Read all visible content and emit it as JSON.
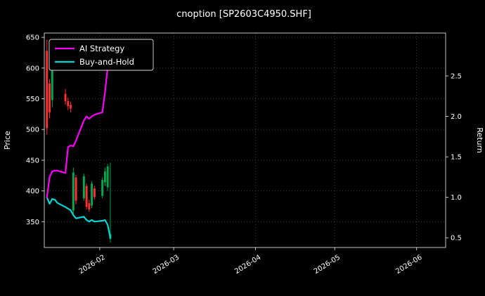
{
  "chart_data": {
    "type": "candlestick",
    "title": "cnoption [SP2603C4950.SHF]",
    "legend": {
      "position": "upper-left"
    },
    "left_axis": {
      "label": "Price",
      "ticks": [
        650,
        600,
        550,
        500,
        450,
        400,
        350
      ],
      "range": [
        308,
        657
      ]
    },
    "right_axis": {
      "label": "Return",
      "tick_labels": [
        "2.5",
        "2.0",
        "1.5",
        "1.0",
        "0.5"
      ],
      "tick_values": [
        2.5,
        2.0,
        1.5,
        1.0,
        0.5
      ],
      "range": [
        0.38,
        3.03
      ]
    },
    "x_axis": {
      "origin": "2026-01-11",
      "span_days": 152,
      "ticks": [
        {
          "date": "2026-02-01",
          "label": "2026-02"
        },
        {
          "date": "2026-03-01",
          "label": "2026-03"
        },
        {
          "date": "2026-04-01",
          "label": "2026-04"
        },
        {
          "date": "2026-05-01",
          "label": "2026-05"
        },
        {
          "date": "2026-06-01",
          "label": "2026-06"
        }
      ]
    },
    "colors": {
      "background": "#000000",
      "text": "#ffffff",
      "spine": "#d9d9d9",
      "grid": "#474747",
      "up": "#00a650",
      "down": "#fe3032",
      "ai_strategy": "#ff00ff",
      "buy_and_hold": "#00d5d5"
    },
    "candles": [
      {
        "date": "2026-01-12",
        "open": 628,
        "high": 646,
        "low": 492,
        "close": 502
      },
      {
        "date": "2026-01-13",
        "open": 575,
        "high": 582,
        "low": 518,
        "close": 528
      },
      {
        "date": "2026-01-14",
        "open": 548,
        "high": 638,
        "low": 536,
        "close": 630
      },
      {
        "date": "2026-01-15",
        "open": 606,
        "high": 645,
        "low": 596,
        "close": 638
      },
      {
        "date": "2026-01-16",
        "open": 622,
        "high": 640,
        "low": 604,
        "close": 612
      },
      {
        "date": "2026-01-19",
        "open": 558,
        "high": 566,
        "low": 540,
        "close": 546
      },
      {
        "date": "2026-01-20",
        "open": 546,
        "high": 552,
        "low": 532,
        "close": 538
      },
      {
        "date": "2026-01-21",
        "open": 540,
        "high": 545,
        "low": 528,
        "close": 534
      },
      {
        "date": "2026-01-22",
        "open": 368,
        "high": 438,
        "low": 362,
        "close": 430
      },
      {
        "date": "2026-01-23",
        "open": 422,
        "high": 426,
        "low": 378,
        "close": 384
      },
      {
        "date": "2026-01-26",
        "open": 388,
        "high": 428,
        "low": 384,
        "close": 424
      },
      {
        "date": "2026-01-27",
        "open": 408,
        "high": 412,
        "low": 370,
        "close": 374
      },
      {
        "date": "2026-01-28",
        "open": 380,
        "high": 386,
        "low": 366,
        "close": 370
      },
      {
        "date": "2026-01-29",
        "open": 376,
        "high": 416,
        "low": 372,
        "close": 412
      },
      {
        "date": "2026-01-30",
        "open": 404,
        "high": 408,
        "low": 386,
        "close": 390
      },
      {
        "date": "2026-02-02",
        "open": 392,
        "high": 422,
        "low": 388,
        "close": 418
      },
      {
        "date": "2026-02-03",
        "open": 414,
        "high": 438,
        "low": 408,
        "close": 432
      },
      {
        "date": "2026-02-04",
        "open": 406,
        "high": 444,
        "low": 400,
        "close": 440
      },
      {
        "date": "2026-02-05",
        "open": 322,
        "high": 446,
        "low": 316,
        "close": 330
      }
    ],
    "series": [
      {
        "name": "AI Strategy",
        "axis": "right",
        "color_key": "ai_strategy",
        "values": [
          1.0,
          1.25,
          1.32,
          1.33,
          1.33,
          1.3,
          1.62,
          1.64,
          1.63,
          1.7,
          1.95,
          2.0,
          1.97,
          2.0,
          2.02,
          2.05,
          2.3,
          2.6,
          2.9
        ]
      },
      {
        "name": "Buy-and-Hold",
        "axis": "right",
        "color_key": "buy_and_hold",
        "values": [
          1.0,
          0.92,
          0.98,
          0.97,
          0.93,
          0.88,
          0.86,
          0.84,
          0.78,
          0.74,
          0.76,
          0.72,
          0.7,
          0.72,
          0.7,
          0.71,
          0.72,
          0.66,
          0.5
        ]
      }
    ]
  }
}
